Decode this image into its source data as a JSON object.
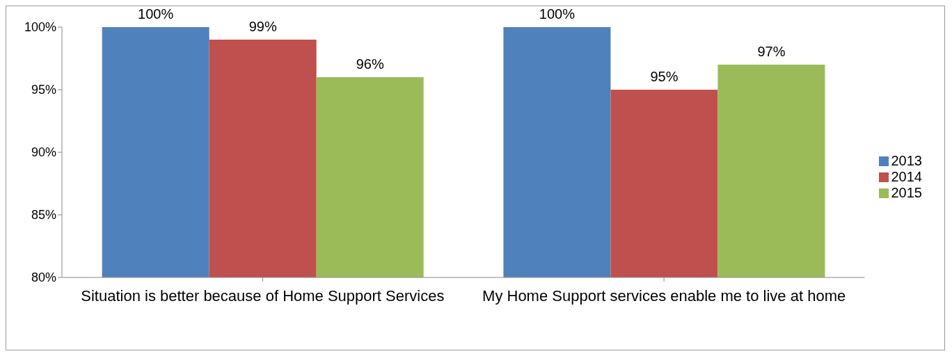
{
  "chart_data": {
    "type": "bar",
    "categories": [
      "Situation is better because of Home Support Services",
      "My Home Support services enable me to live at home"
    ],
    "series": [
      {
        "name": "2013",
        "color": "#4f81bd",
        "values": [
          100,
          100
        ],
        "value_labels": [
          "100%",
          "100%"
        ]
      },
      {
        "name": "2014",
        "color": "#c0504d",
        "values": [
          99,
          95
        ],
        "value_labels": [
          "99%",
          "95%"
        ]
      },
      {
        "name": "2015",
        "color": "#9bbb59",
        "values": [
          96,
          97
        ],
        "value_labels": [
          "96%",
          "97%"
        ]
      }
    ],
    "ylim": [
      80,
      100
    ],
    "yticks": [
      {
        "value": 80,
        "label": "80%"
      },
      {
        "value": 85,
        "label": "85%"
      },
      {
        "value": 90,
        "label": "90%"
      },
      {
        "value": 95,
        "label": "95%"
      },
      {
        "value": 100,
        "label": "100%"
      }
    ],
    "grid": false,
    "legend": "right"
  }
}
